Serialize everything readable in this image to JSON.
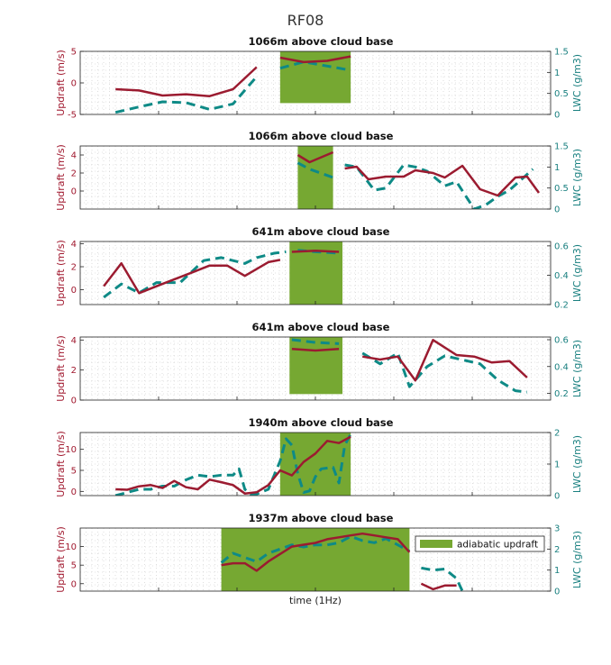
{
  "chart_data": {
    "type": "line",
    "title": "RF08",
    "xlabel": "time (1Hz)",
    "ylabel_left": "Updraft (m/s)",
    "ylabel_right": "LWC (g/m3)",
    "legend": {
      "label": "adiabatic updraft",
      "placement": "top-right of last panel"
    },
    "colors": {
      "updraft": "#9b1b30",
      "lwc": "#0e8a86",
      "adiabatic": "#76a832"
    },
    "panels": [
      {
        "title": "1066m above cloud base",
        "xlim": [
          0,
          40
        ],
        "ylim_left": [
          -5,
          5
        ],
        "yticks_left": [
          -5,
          0,
          5
        ],
        "ylim_right": [
          0,
          1.5
        ],
        "yticks_right": [
          0,
          0.5,
          1,
          1.5
        ],
        "adiabatic_box": {
          "x": [
            17,
            23
          ],
          "y": [
            -3.2,
            5
          ]
        },
        "updraft": [
          [
            3,
            -1
          ],
          [
            5,
            -1.2
          ],
          [
            7,
            -2
          ],
          [
            9,
            -1.8
          ],
          [
            11,
            -2.1
          ],
          [
            13,
            -1
          ],
          [
            15,
            2.5
          ],
          null,
          [
            17,
            4
          ],
          [
            19,
            3.3
          ],
          [
            21,
            3.5
          ],
          [
            23,
            4.2
          ]
        ],
        "lwc": [
          [
            3,
            0.05
          ],
          [
            5,
            0.18
          ],
          [
            7,
            0.3
          ],
          [
            9,
            0.28
          ],
          [
            11,
            0.12
          ],
          [
            13,
            0.25
          ],
          [
            15,
            0.9
          ],
          null,
          [
            17,
            1.1
          ],
          [
            19,
            1.25
          ],
          [
            21,
            1.15
          ],
          [
            23,
            1.05
          ]
        ]
      },
      {
        "title": "1066m above cloud base",
        "xlim": [
          0,
          40
        ],
        "ylim_left": [
          -2,
          5
        ],
        "yticks_left": [
          0,
          2,
          4
        ],
        "ylim_right": [
          0,
          1.5
        ],
        "yticks_right": [
          0,
          0.5,
          1,
          1.5
        ],
        "adiabatic_box": {
          "x": [
            18.5,
            21.5
          ],
          "y": [
            -2,
            5
          ]
        },
        "updraft": [
          [
            18.5,
            4
          ],
          [
            19.5,
            3.2
          ],
          [
            21.5,
            4.3
          ],
          null,
          [
            22.5,
            2.5
          ],
          [
            23.5,
            2.7
          ],
          [
            24.5,
            1.3
          ],
          [
            26,
            1.6
          ],
          [
            27.5,
            1.6
          ],
          [
            28.5,
            2.3
          ],
          [
            30,
            2
          ],
          [
            31,
            1.5
          ],
          [
            32.5,
            2.8
          ],
          [
            34,
            0.2
          ],
          [
            35.5,
            -0.5
          ],
          [
            37,
            1.5
          ],
          [
            38,
            1.6
          ],
          [
            39,
            -0.2
          ]
        ],
        "lwc": [
          [
            18.5,
            1.1
          ],
          [
            19.5,
            0.95
          ],
          [
            21.5,
            0.75
          ],
          null,
          [
            22.5,
            1.05
          ],
          [
            23.5,
            1.0
          ],
          [
            25,
            0.45
          ],
          [
            26,
            0.5
          ],
          [
            27.5,
            1.05
          ],
          [
            28.5,
            1.0
          ],
          [
            29.5,
            0.9
          ],
          [
            31,
            0.55
          ],
          [
            32,
            0.65
          ],
          [
            33.5,
            0.0
          ],
          [
            34.5,
            0.1
          ],
          [
            35.5,
            0.3
          ],
          [
            36.5,
            0.45
          ],
          [
            38.5,
            0.95
          ]
        ]
      },
      {
        "title": "641m above cloud base",
        "xlim": [
          0,
          40
        ],
        "ylim_left": [
          -1.3,
          4.2
        ],
        "yticks_left": [
          0,
          2,
          4
        ],
        "ylim_right": [
          0.2,
          0.63
        ],
        "yticks_right": [
          0.2,
          0.4,
          0.6
        ],
        "adiabatic_box": {
          "x": [
            17.8,
            22.3
          ],
          "y": [
            -1.3,
            4.2
          ]
        },
        "updraft": [
          [
            2,
            0.3
          ],
          [
            3.5,
            2.3
          ],
          [
            5,
            -0.3
          ],
          [
            7,
            0.5
          ],
          [
            9.5,
            1.5
          ],
          [
            11,
            2.1
          ],
          [
            12.5,
            2.1
          ],
          [
            14,
            1.2
          ],
          [
            16,
            2.4
          ],
          [
            17,
            2.6
          ],
          null,
          [
            18,
            3.3
          ],
          [
            20,
            3.4
          ],
          [
            22,
            3.3
          ]
        ],
        "lwc": [
          [
            2,
            0.25
          ],
          [
            3.5,
            0.34
          ],
          [
            5,
            0.28
          ],
          [
            6.5,
            0.35
          ],
          [
            8.5,
            0.35
          ],
          [
            10.5,
            0.5
          ],
          [
            12,
            0.52
          ],
          [
            13,
            0.5
          ],
          [
            14,
            0.48
          ],
          [
            15,
            0.52
          ],
          [
            16.5,
            0.55
          ],
          [
            17.5,
            0.56
          ],
          null,
          [
            18.5,
            0.57
          ],
          [
            20,
            0.56
          ],
          [
            22,
            0.55
          ]
        ]
      },
      {
        "title": "641m above cloud base",
        "xlim": [
          0,
          40
        ],
        "ylim_left": [
          0,
          4.2
        ],
        "yticks_left": [
          0,
          2,
          4
        ],
        "ylim_right": [
          0.15,
          0.62
        ],
        "yticks_right": [
          0.2,
          0.4,
          0.6
        ],
        "adiabatic_box": {
          "x": [
            17.8,
            22.3
          ],
          "y": [
            0.4,
            4.2
          ]
        },
        "updraft": [
          [
            18,
            3.4
          ],
          [
            20,
            3.3
          ],
          [
            22,
            3.4
          ],
          null,
          [
            24,
            2.9
          ],
          [
            25.5,
            2.7
          ],
          [
            27,
            2.9
          ],
          [
            28.5,
            1.3
          ],
          [
            30,
            4
          ],
          [
            32,
            3
          ],
          [
            33.5,
            2.9
          ],
          [
            35,
            2.5
          ],
          [
            36.5,
            2.6
          ],
          [
            38,
            1.5
          ]
        ],
        "lwc": [
          [
            18,
            0.6
          ],
          [
            20,
            0.58
          ],
          [
            22,
            0.57
          ],
          null,
          [
            24,
            0.5
          ],
          [
            25.5,
            0.42
          ],
          [
            27,
            0.5
          ],
          [
            28,
            0.25
          ],
          [
            29.5,
            0.4
          ],
          [
            31,
            0.48
          ],
          [
            32.5,
            0.45
          ],
          [
            34,
            0.42
          ],
          [
            35.5,
            0.3
          ],
          [
            37,
            0.22
          ],
          [
            38,
            0.21
          ]
        ]
      },
      {
        "title": "1940m above cloud base",
        "xlim": [
          0,
          40
        ],
        "ylim_left": [
          -1,
          14
        ],
        "yticks_left": [
          0,
          5,
          10
        ],
        "ylim_right": [
          0,
          2
        ],
        "yticks_right": [
          0,
          1,
          2
        ],
        "adiabatic_box": {
          "x": [
            17,
            23
          ],
          "y": [
            -1,
            14
          ]
        },
        "updraft": [
          [
            3,
            0.5
          ],
          [
            4,
            0.4
          ],
          [
            5,
            1.2
          ],
          [
            6,
            1.5
          ],
          [
            7,
            0.8
          ],
          [
            8,
            2.5
          ],
          [
            9,
            1
          ],
          [
            10,
            0.5
          ],
          [
            11,
            2.8
          ],
          [
            12,
            2.2
          ],
          [
            13,
            1.5
          ],
          [
            14,
            -0.5
          ],
          [
            15,
            -0.2
          ],
          [
            16,
            1.5
          ],
          [
            17,
            5
          ],
          [
            18,
            3.8
          ],
          [
            19,
            7
          ],
          [
            20,
            9
          ],
          [
            21,
            12
          ],
          [
            22,
            11.5
          ],
          [
            23,
            13
          ]
        ],
        "lwc": [
          [
            3,
            0.0
          ],
          [
            4,
            0.1
          ],
          [
            5,
            0.2
          ],
          [
            6,
            0.2
          ],
          [
            7,
            0.3
          ],
          [
            8,
            0.3
          ],
          [
            9,
            0.5
          ],
          [
            10,
            0.65
          ],
          [
            11,
            0.6
          ],
          [
            12,
            0.65
          ],
          [
            13,
            0.65
          ],
          [
            13.5,
            0.85
          ],
          [
            14,
            0.2
          ],
          [
            14.5,
            0.05
          ],
          [
            15,
            0.05
          ],
          [
            16,
            0.2
          ],
          [
            17,
            1.1
          ],
          [
            17.5,
            1.8
          ],
          [
            18,
            1.6
          ],
          [
            18.5,
            0.7
          ],
          [
            19,
            0.1
          ],
          [
            19.5,
            0.15
          ],
          [
            20,
            0.6
          ],
          [
            20.5,
            0.85
          ],
          [
            21.5,
            0.9
          ],
          [
            22,
            0.4
          ],
          [
            22.5,
            1.6
          ],
          [
            23,
            1.95
          ]
        ]
      },
      {
        "title": "1937m above cloud base",
        "xlim": [
          0,
          40
        ],
        "ylim_left": [
          -2,
          15
        ],
        "yticks_left": [
          0,
          5,
          10
        ],
        "ylim_right": [
          0,
          3
        ],
        "yticks_right": [
          0,
          1,
          2,
          3
        ],
        "adiabatic_box": {
          "x": [
            12,
            28
          ],
          "y": [
            -2,
            15
          ]
        },
        "updraft": [
          [
            12,
            5
          ],
          [
            13,
            5.5
          ],
          [
            14,
            5.5
          ],
          [
            15,
            3.5
          ],
          [
            16,
            6
          ],
          [
            17,
            8
          ],
          [
            18,
            10
          ],
          [
            19,
            10.5
          ],
          [
            20,
            11
          ],
          [
            21,
            12
          ],
          [
            22,
            12.5
          ],
          [
            23,
            13
          ],
          [
            24,
            13.5
          ],
          [
            25,
            13
          ],
          [
            26,
            12.5
          ],
          [
            27,
            12
          ],
          [
            28,
            8.5
          ],
          null,
          [
            29,
            0
          ],
          [
            30,
            -1.5
          ],
          [
            31,
            -0.5
          ],
          [
            32,
            -0.5
          ]
        ],
        "lwc": [
          [
            12,
            1.35
          ],
          [
            13,
            1.8
          ],
          [
            14,
            1.6
          ],
          [
            15,
            1.4
          ],
          [
            16,
            1.8
          ],
          [
            17,
            2
          ],
          [
            18,
            2.2
          ],
          [
            19,
            2.1
          ],
          [
            20,
            2.2
          ],
          [
            21,
            2.2
          ],
          [
            22,
            2.3
          ],
          [
            23,
            2.6
          ],
          [
            24,
            2.4
          ],
          [
            25,
            2.3
          ],
          [
            26,
            2.5
          ],
          [
            27,
            2.2
          ],
          [
            28,
            1.9
          ],
          null,
          [
            29,
            1.1
          ],
          [
            30,
            1.0
          ],
          [
            31,
            1.05
          ],
          [
            32,
            0.6
          ],
          [
            32.5,
            0.0
          ]
        ]
      }
    ]
  }
}
